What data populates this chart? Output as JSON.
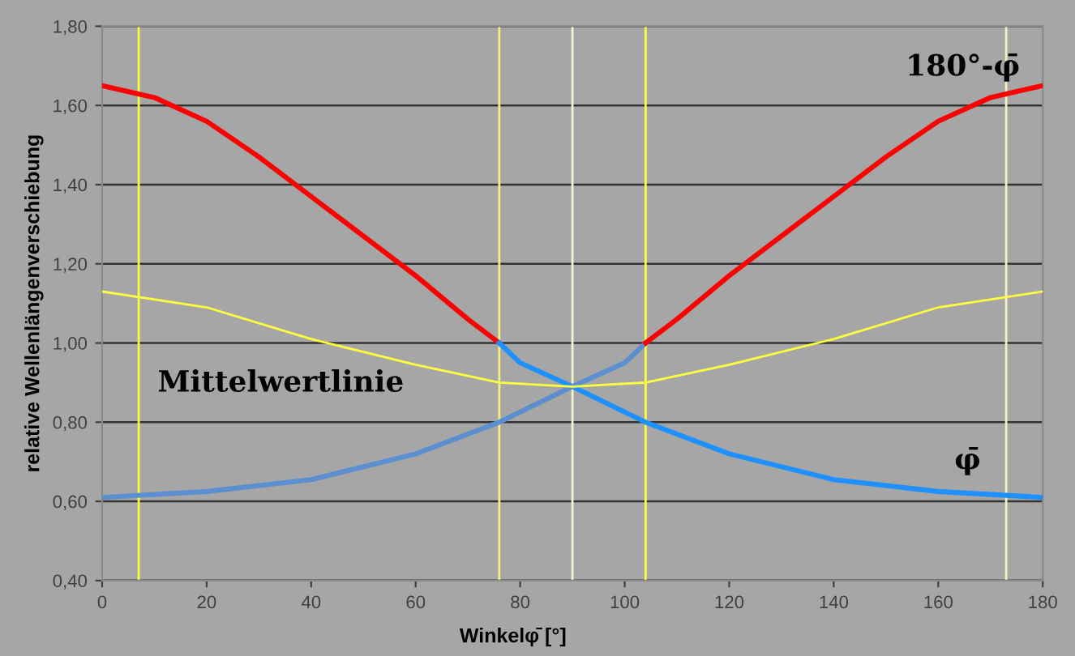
{
  "chart_data": {
    "type": "line",
    "xlabel": "Winkelφ̄ [°]",
    "ylabel": "relative Wellenlängenverschiebung",
    "xlim": [
      0,
      180
    ],
    "xticks": [
      0,
      20,
      40,
      60,
      80,
      100,
      120,
      140,
      160,
      180
    ],
    "ylim": [
      0.4,
      1.8
    ],
    "yticks": [
      {
        "value": 0.4,
        "label": "0,40"
      },
      {
        "value": 0.6,
        "label": "0,60"
      },
      {
        "value": 0.8,
        "label": "0,80"
      },
      {
        "value": 1.0,
        "label": "1,00"
      },
      {
        "value": 1.2,
        "label": "1,20"
      },
      {
        "value": 1.4,
        "label": "1,40"
      },
      {
        "value": 1.6,
        "label": "1,60"
      },
      {
        "value": 1.8,
        "label": "1,80"
      }
    ],
    "grid": "y",
    "legend": false,
    "marker": "none",
    "line_style": "solid",
    "series": [
      {
        "color": "#ff0000",
        "x": [
          0,
          10,
          20,
          30,
          40,
          50,
          60,
          70,
          76
        ],
        "values": [
          1.65,
          1.62,
          1.56,
          1.47,
          1.37,
          1.27,
          1.17,
          1.06,
          1.0
        ]
      },
      {
        "color": "#1e90ff",
        "x": [
          76,
          80,
          90,
          104,
          120,
          140,
          160,
          180
        ],
        "values": [
          1.0,
          0.95,
          0.89,
          0.8,
          0.72,
          0.655,
          0.625,
          0.61
        ]
      },
      {
        "color": "#5b8fd0",
        "x": [
          0,
          20,
          40,
          60,
          76,
          90,
          100,
          104
        ],
        "values": [
          0.61,
          0.625,
          0.655,
          0.72,
          0.8,
          0.89,
          0.95,
          1.0
        ]
      },
      {
        "color": "#ff0000",
        "x": [
          104,
          110,
          120,
          130,
          140,
          150,
          160,
          170,
          180
        ],
        "values": [
          1.0,
          1.06,
          1.17,
          1.27,
          1.37,
          1.47,
          1.56,
          1.62,
          1.65
        ]
      },
      {
        "color": "#ffff40",
        "x": [
          0,
          20,
          40,
          60,
          76,
          90,
          104,
          120,
          140,
          160,
          180
        ],
        "values": [
          1.13,
          1.09,
          1.01,
          0.945,
          0.9,
          0.89,
          0.9,
          0.945,
          1.01,
          1.09,
          1.13
        ]
      }
    ],
    "ref_lines": [
      {
        "axis": "x",
        "value": 7,
        "color": "#ffff40"
      },
      {
        "axis": "x",
        "value": 76,
        "color": "#f0f080"
      },
      {
        "axis": "x",
        "value": 90,
        "color": "#f4f4d0"
      },
      {
        "axis": "x",
        "value": 104,
        "color": "#ffff40"
      },
      {
        "axis": "x",
        "value": 173,
        "color": "#f0f0c0"
      }
    ],
    "annotations": [
      "Mittelwertlinie",
      "180°-φ̄",
      "φ̄"
    ]
  }
}
